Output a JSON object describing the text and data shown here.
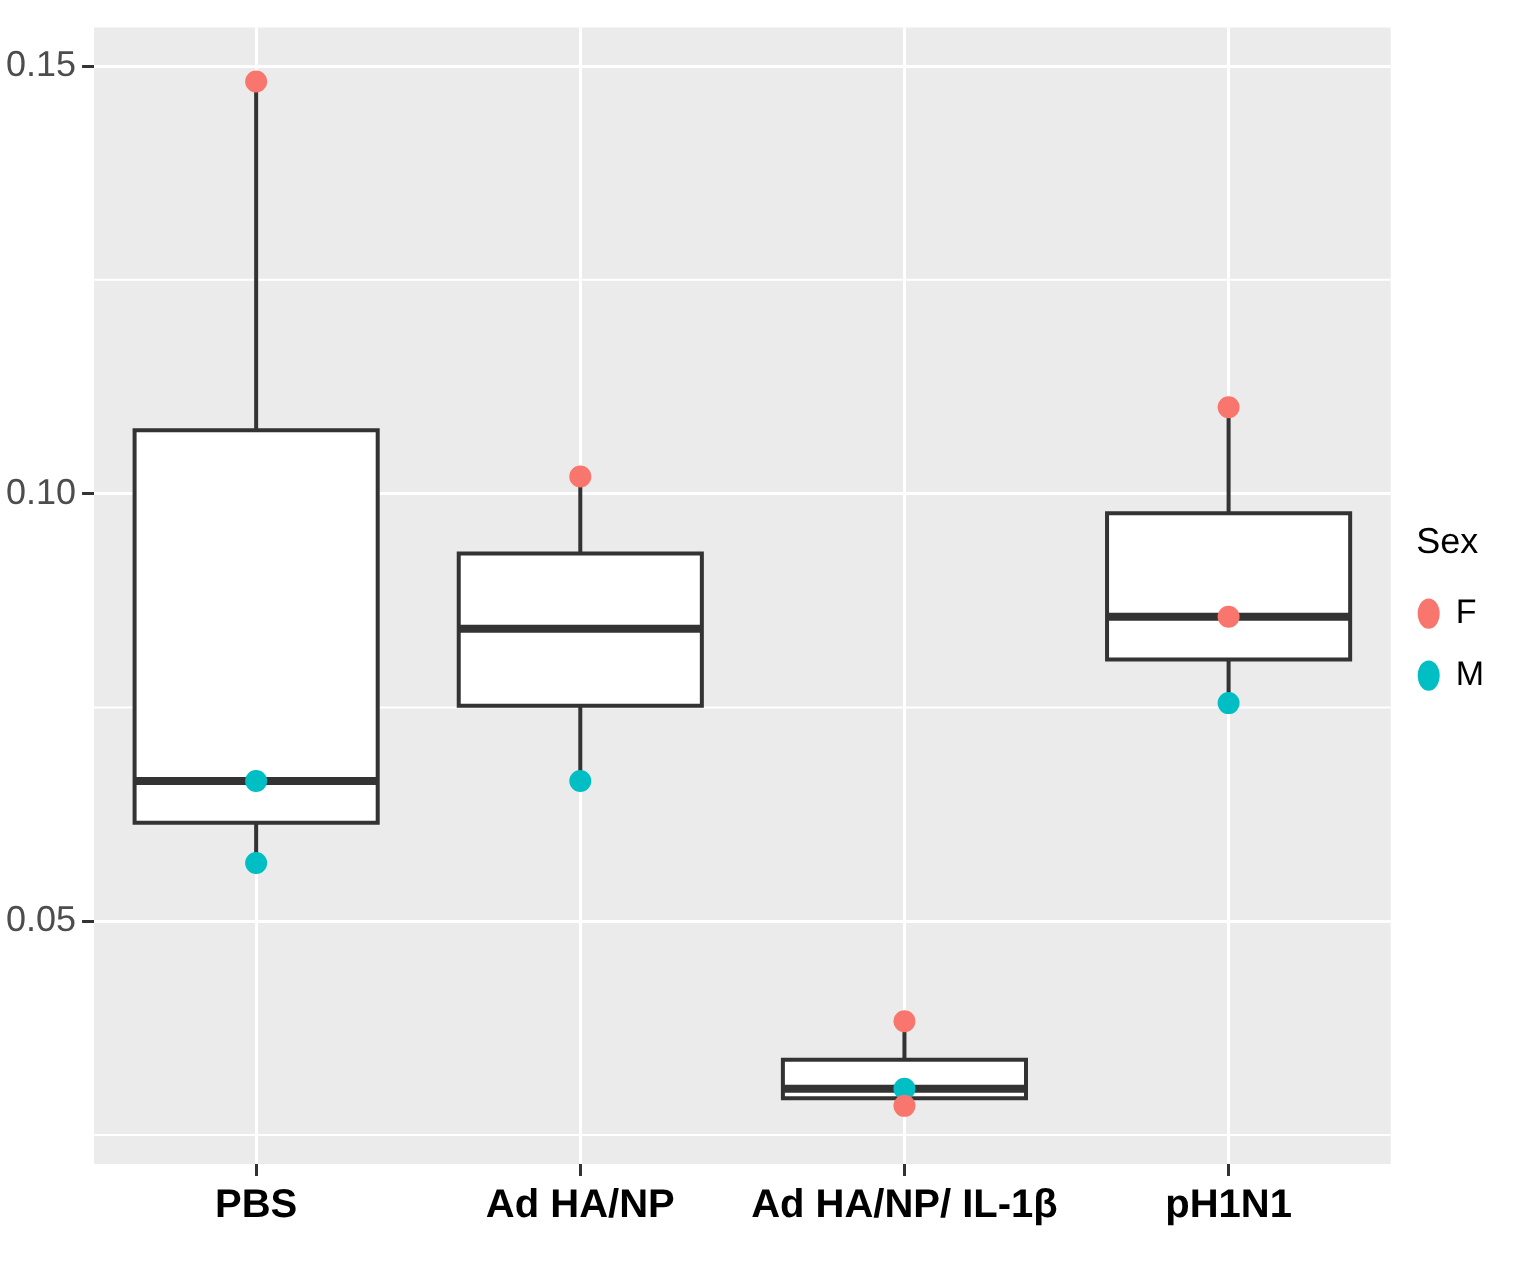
{
  "chart_data": {
    "type": "box",
    "categories": [
      "PBS",
      "Ad HA/NP",
      "Ad HA/NP/ IL-1β",
      "pH1N1"
    ],
    "boxes": [
      {
        "low": 0.057,
        "q1": 0.0615,
        "median": 0.0664,
        "q3": 0.1074,
        "high": 0.1482
      },
      {
        "low": 0.0664,
        "q1": 0.0752,
        "median": 0.0842,
        "q3": 0.093,
        "high": 0.1018
      },
      {
        "low": 0.0284,
        "q1": 0.0293,
        "median": 0.0304,
        "q3": 0.0338,
        "high": 0.0378
      },
      {
        "low": 0.0759,
        "q1": 0.0806,
        "median": 0.0856,
        "q3": 0.0977,
        "high": 0.1099
      }
    ],
    "series": [
      {
        "name": "F",
        "type": "scatter",
        "color": "#f8766d",
        "x": [
          "PBS",
          "Ad HA/NP",
          "Ad HA/NP/ IL-1β",
          "Ad HA/NP/ IL-1β",
          "pH1N1",
          "pH1N1"
        ],
        "values": [
          0.1482,
          0.102,
          0.0383,
          0.0284,
          0.1101,
          0.0856
        ]
      },
      {
        "name": "M",
        "type": "scatter",
        "color": "#00bfc4",
        "x": [
          "PBS",
          "PBS",
          "Ad HA/NP",
          "Ad HA/NP/ IL-1β",
          "pH1N1"
        ],
        "values": [
          0.0664,
          0.0568,
          0.0664,
          0.0304,
          0.0755
        ]
      }
    ],
    "legend_title": "Sex",
    "legend": "right",
    "ylim": [
      0.0216,
      0.1545
    ],
    "yticks": [
      0.05,
      {
        "value": 0.1,
        "label": "0.10"
      },
      0.15
    ],
    "grid": true,
    "marker": "circle"
  }
}
